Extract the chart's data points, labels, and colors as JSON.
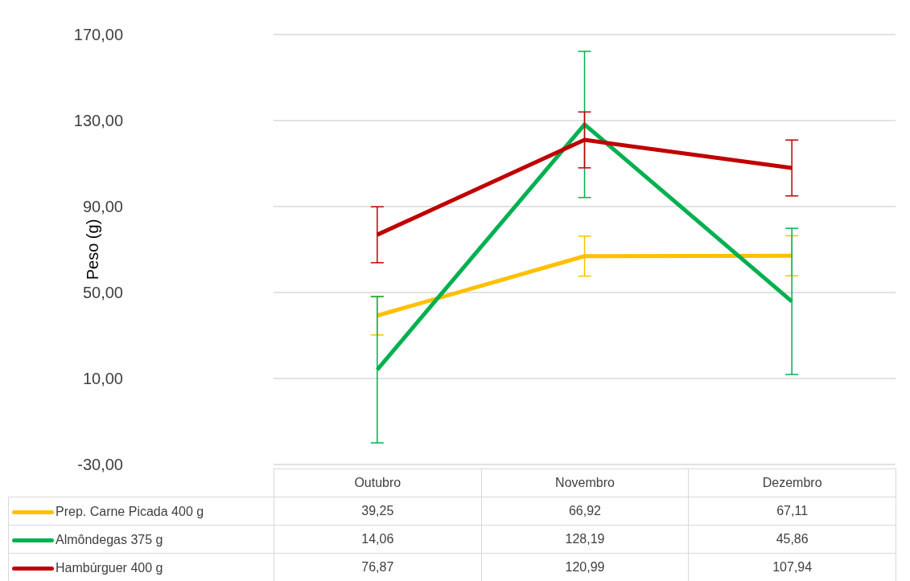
{
  "chart_data": {
    "type": "line",
    "ylabel": "Peso (g)",
    "categories": [
      "Outubro",
      "Novembro",
      "Dezembro"
    ],
    "series": [
      {
        "name": "Prep. Carne Picada 400 g",
        "color": "#ffc000",
        "values": [
          39.25,
          66.92,
          67.11
        ],
        "errors": [
          9,
          9.3,
          9.3
        ],
        "value_labels": [
          "39,25",
          "66,92",
          "67,11"
        ]
      },
      {
        "name": "Almôndegas 375 g",
        "color": "#00b050",
        "values": [
          14.06,
          128.19,
          45.86
        ],
        "errors": [
          34,
          34,
          34
        ],
        "value_labels": [
          "14,06",
          "128,19",
          "45,86"
        ]
      },
      {
        "name": "Hambúrguer 400 g",
        "color": "#c00000",
        "values": [
          76.87,
          120.99,
          107.94
        ],
        "errors": [
          13,
          13,
          13
        ],
        "value_labels": [
          "76,87",
          "120,99",
          "107,94"
        ]
      }
    ],
    "ylim": [
      -30,
      170
    ],
    "yticks": [
      {
        "value": -30,
        "label": "-30,00"
      },
      {
        "value": 10,
        "label": "10,00"
      },
      {
        "value": 50,
        "label": "50,00"
      },
      {
        "value": 90,
        "label": "90,00"
      },
      {
        "value": 130,
        "label": "130,00"
      },
      {
        "value": 170,
        "label": "170,00"
      }
    ],
    "grid": "y",
    "legend": "bottom",
    "marker": "none",
    "line_style": "solid"
  }
}
